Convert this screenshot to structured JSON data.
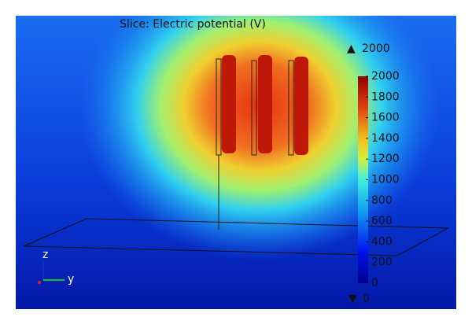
{
  "title": "Slice: Electric potential (V)",
  "max_label": 2000,
  "min_label": 0,
  "colorbar": {
    "lim": [
      0,
      2000
    ],
    "ticks": [
      0,
      200,
      400,
      600,
      800,
      1000,
      1200,
      1400,
      1600,
      1800,
      2000
    ]
  },
  "axes": {
    "z": "z",
    "y": "y"
  }
}
